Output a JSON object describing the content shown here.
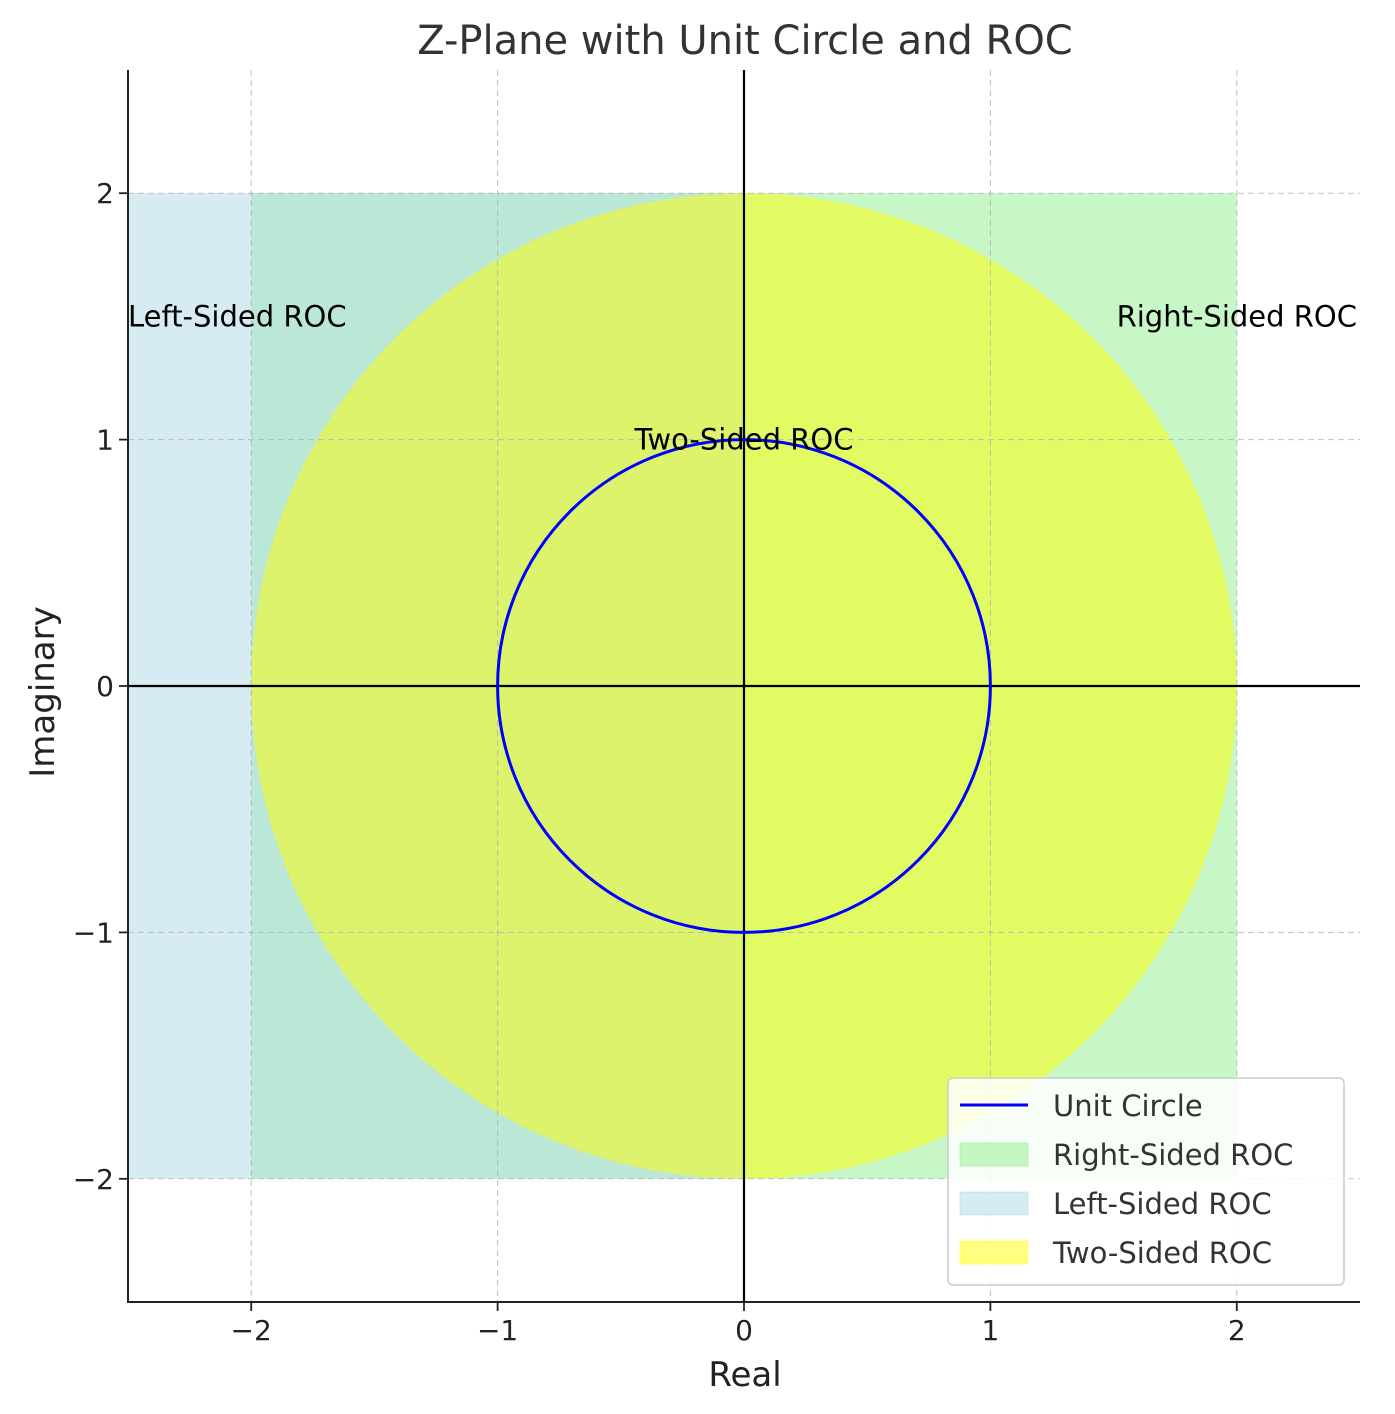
{
  "chart_data": {
    "type": "area",
    "title": "Z-Plane with Unit Circle and ROC",
    "xlabel": "Real",
    "ylabel": "Imaginary",
    "xlim": [
      -2.5,
      2.5
    ],
    "ylim": [
      -2.5,
      2.5
    ],
    "xticks": [
      -2,
      -1,
      0,
      1,
      2
    ],
    "yticks": [
      -2,
      -1,
      0,
      1,
      2
    ],
    "xtick_labels": [
      "−2",
      "−1",
      "0",
      "1",
      "2"
    ],
    "ytick_labels": [
      "−2",
      "−1",
      "0",
      "1",
      "2"
    ],
    "grid": true,
    "legend_position": "lower-right",
    "series": [
      {
        "name": "Unit Circle",
        "kind": "circle",
        "center": [
          0,
          0
        ],
        "radius": 1,
        "color": "#0000ff"
      },
      {
        "name": "Right-Sided ROC",
        "kind": "rect",
        "x": [
          -2,
          2
        ],
        "y": [
          -2,
          2
        ],
        "color": "#90ee90",
        "alpha": 0.5
      },
      {
        "name": "Left-Sided ROC",
        "kind": "rect",
        "x": [
          -2.5,
          0
        ],
        "y": [
          -2,
          2
        ],
        "color": "#add8e6",
        "alpha": 0.5
      },
      {
        "name": "Two-Sided ROC",
        "kind": "circle-fill",
        "center": [
          0,
          0
        ],
        "radius": 2,
        "color": "#ffff00",
        "alpha": 0.5
      }
    ],
    "annotations": [
      {
        "text": "Left-Sided ROC",
        "x": -2.5,
        "y": 1.5,
        "anchor": "start"
      },
      {
        "text": "Right-Sided ROC",
        "x": 2,
        "y": 1.5,
        "anchor": "middle"
      },
      {
        "text": "Two-Sided ROC",
        "x": 0,
        "y": 1,
        "anchor": "middle"
      }
    ],
    "reference_lines": {
      "horizontal": 0,
      "vertical": 0,
      "color": "#000000"
    }
  }
}
